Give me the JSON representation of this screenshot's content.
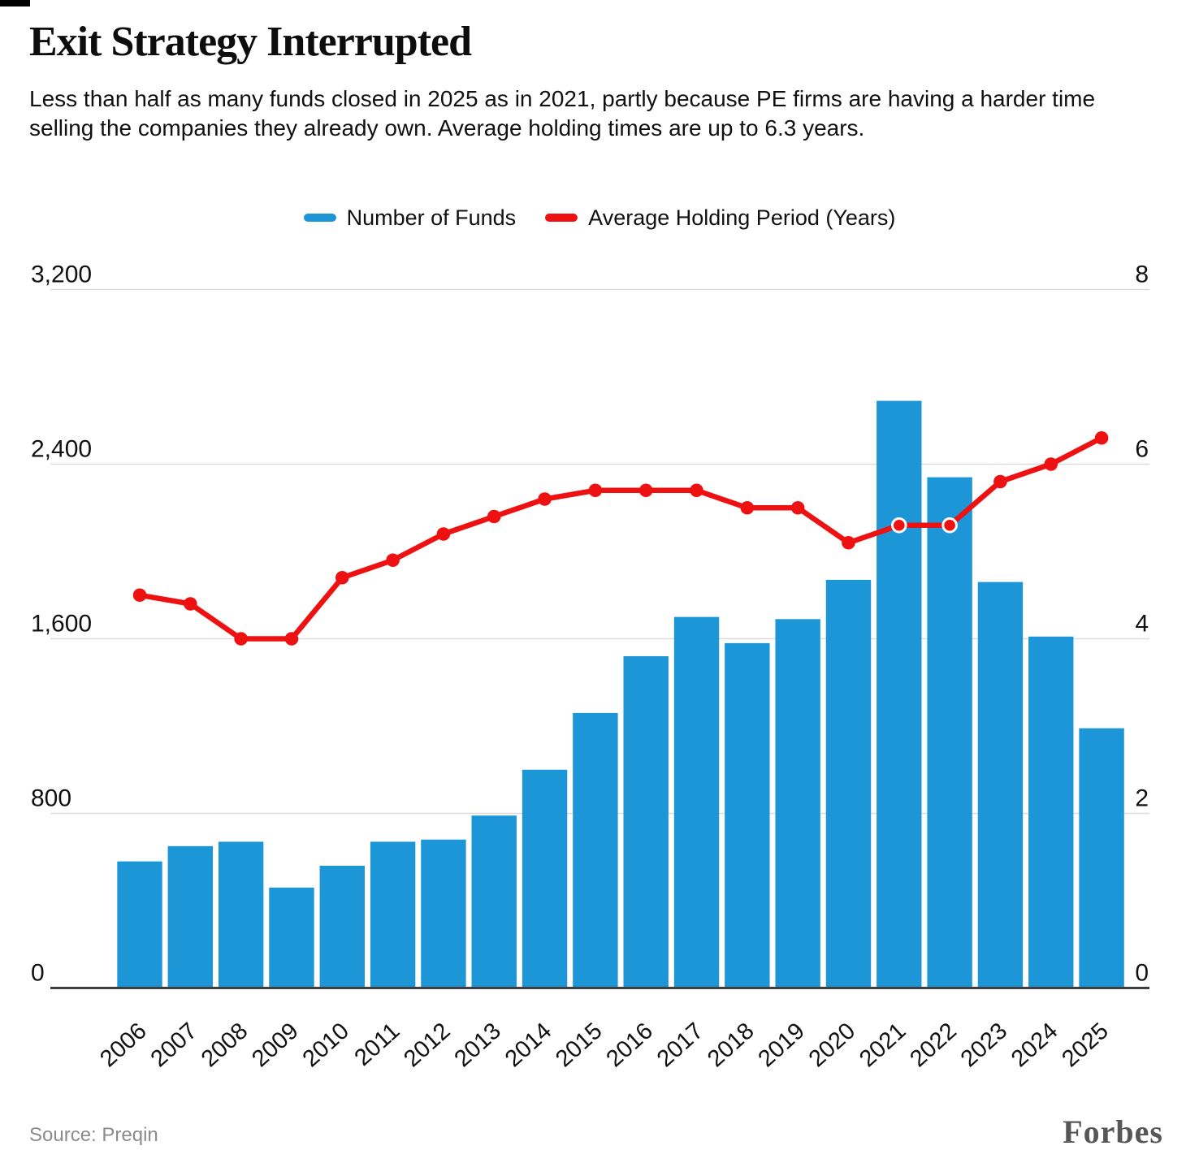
{
  "title": "Exit Strategy Interrupted",
  "subtitle": "Less than half as many funds closed in 2025 as in 2021, partly because PE firms are having a harder time selling the companies they already own. Average holding times are up to 6.3 years.",
  "legend": [
    {
      "label": "Number of Funds",
      "color": "#1d96d8"
    },
    {
      "label": "Average Holding Period (Years)",
      "color": "#ee1111"
    }
  ],
  "source": "Source: Preqin",
  "brand": "Forbes",
  "colors": {
    "bar": "#1d96d8",
    "line": "#ee1111",
    "gridline": "#dcdcdc",
    "baseline": "#3f3f3f",
    "text": "#111111",
    "source_text": "#8b8b8b"
  },
  "chart_data": {
    "type": "bar",
    "categories": [
      2006,
      2007,
      2008,
      2009,
      2010,
      2011,
      2012,
      2013,
      2014,
      2015,
      2016,
      2017,
      2018,
      2019,
      2020,
      2021,
      2022,
      2023,
      2024,
      2025
    ],
    "series": [
      {
        "name": "Number of Funds",
        "type": "bar",
        "axis": "left",
        "color": "#1d96d8",
        "values": [
          580,
          650,
          670,
          460,
          560,
          670,
          680,
          790,
          1000,
          1260,
          1520,
          1700,
          1580,
          1690,
          1870,
          2690,
          2340,
          1860,
          1610,
          1190
        ]
      },
      {
        "name": "Average Holding Period (Years)",
        "type": "line",
        "axis": "right",
        "color": "#ee1111",
        "values": [
          4.5,
          4.4,
          4.0,
          4.0,
          4.7,
          4.9,
          5.2,
          5.4,
          5.6,
          5.7,
          5.7,
          5.7,
          5.5,
          5.5,
          5.1,
          5.3,
          5.3,
          5.8,
          6.0,
          6.3
        ],
        "ring_years": [
          2021,
          2022
        ]
      }
    ],
    "left_axis": {
      "ticks": [
        0,
        800,
        1600,
        2400,
        3200
      ],
      "max": 3200,
      "tick_labels": [
        "0",
        "800",
        "1,600",
        "2,400",
        "3,200"
      ]
    },
    "right_axis": {
      "ticks": [
        0,
        2,
        4,
        6,
        8
      ],
      "max": 8
    },
    "grid": true,
    "legend_position": "top",
    "xlabel": "",
    "ylabel": ""
  }
}
